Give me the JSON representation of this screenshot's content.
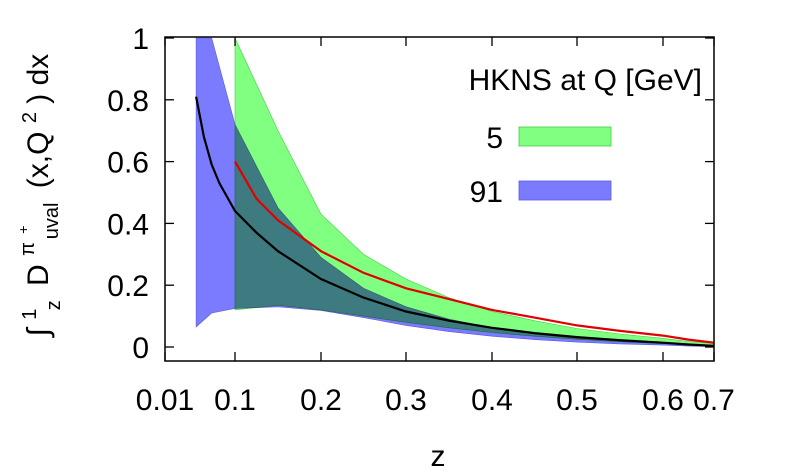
{
  "chart_data": {
    "type": "area",
    "xlabel": "z",
    "ylabel": {
      "integral": "∫",
      "upper": "1",
      "lower": "z",
      "D": "D",
      "sup": "π",
      "sup_sign": "+",
      "sub": "uval",
      "args_open": "(x,Q",
      "args_exp": "2",
      "args_close": ") dx"
    },
    "xlim": [
      0.01,
      0.7
    ],
    "ylim": [
      0,
      1
    ],
    "x_tick_labels": [
      "0.01",
      "0.1",
      "0.2",
      "0.3",
      "0.4",
      "0.5",
      "0.6",
      "0.7"
    ],
    "x_tick_values": [
      0.01,
      0.1,
      0.2,
      0.3,
      0.4,
      0.5,
      0.6,
      0.7
    ],
    "y_tick_labels": [
      "0",
      "0.2",
      "0.4",
      "0.6",
      "0.8",
      "1"
    ],
    "y_tick_values": [
      0,
      0.2,
      0.4,
      0.6,
      0.8,
      1
    ],
    "legend": {
      "title": "HKNS at Q [GeV]",
      "position": "top-right",
      "entries": [
        {
          "label": "5",
          "color": "#80ff80"
        },
        {
          "label": "91",
          "color": "#7b7bff"
        }
      ]
    },
    "bands": [
      {
        "name": "5",
        "color": "#80ff80",
        "edge": "#40d040",
        "x": [
          0.1,
          0.15,
          0.2,
          0.25,
          0.3,
          0.35,
          0.4,
          0.45,
          0.5,
          0.55,
          0.6,
          0.65,
          0.7
        ],
        "upper": [
          1.0,
          0.7,
          0.43,
          0.3,
          0.22,
          0.16,
          0.115,
          0.085,
          0.06,
          0.042,
          0.028,
          0.018,
          0.011
        ],
        "lower": [
          0.12,
          0.135,
          0.12,
          0.1,
          0.08,
          0.062,
          0.047,
          0.035,
          0.025,
          0.017,
          0.011,
          0.007,
          0.004
        ]
      },
      {
        "name": "91",
        "color": "#7b7bff",
        "edge": "#5a5ae0",
        "x": [
          0.05,
          0.07,
          0.1,
          0.15,
          0.2,
          0.25,
          0.3,
          0.35,
          0.4,
          0.45,
          0.5,
          0.55,
          0.6,
          0.65,
          0.7
        ],
        "upper": [
          1.0,
          1.0,
          0.72,
          0.45,
          0.29,
          0.19,
          0.13,
          0.09,
          0.062,
          0.042,
          0.028,
          0.018,
          0.011,
          0.006,
          0.003
        ],
        "lower": [
          0.065,
          0.11,
          0.125,
          0.13,
          0.118,
          0.095,
          0.07,
          0.05,
          0.035,
          0.024,
          0.016,
          0.01,
          0.006,
          0.003,
          0.001
        ]
      }
    ],
    "series": [
      {
        "name": "91",
        "color": "#000000",
        "x": [
          0.05,
          0.06,
          0.07,
          0.08,
          0.1,
          0.125,
          0.15,
          0.2,
          0.25,
          0.3,
          0.35,
          0.4,
          0.45,
          0.5,
          0.55,
          0.6,
          0.65,
          0.7
        ],
        "y": [
          0.81,
          0.68,
          0.59,
          0.53,
          0.44,
          0.37,
          0.31,
          0.22,
          0.16,
          0.115,
          0.085,
          0.062,
          0.045,
          0.032,
          0.022,
          0.014,
          0.008,
          0.004
        ]
      },
      {
        "name": "5",
        "color": "#e00000",
        "x": [
          0.1,
          0.125,
          0.15,
          0.2,
          0.25,
          0.3,
          0.35,
          0.4,
          0.45,
          0.5,
          0.55,
          0.6,
          0.65,
          0.7
        ],
        "y": [
          0.6,
          0.48,
          0.41,
          0.31,
          0.24,
          0.19,
          0.155,
          0.12,
          0.095,
          0.07,
          0.052,
          0.037,
          0.024,
          0.014
        ]
      }
    ]
  }
}
